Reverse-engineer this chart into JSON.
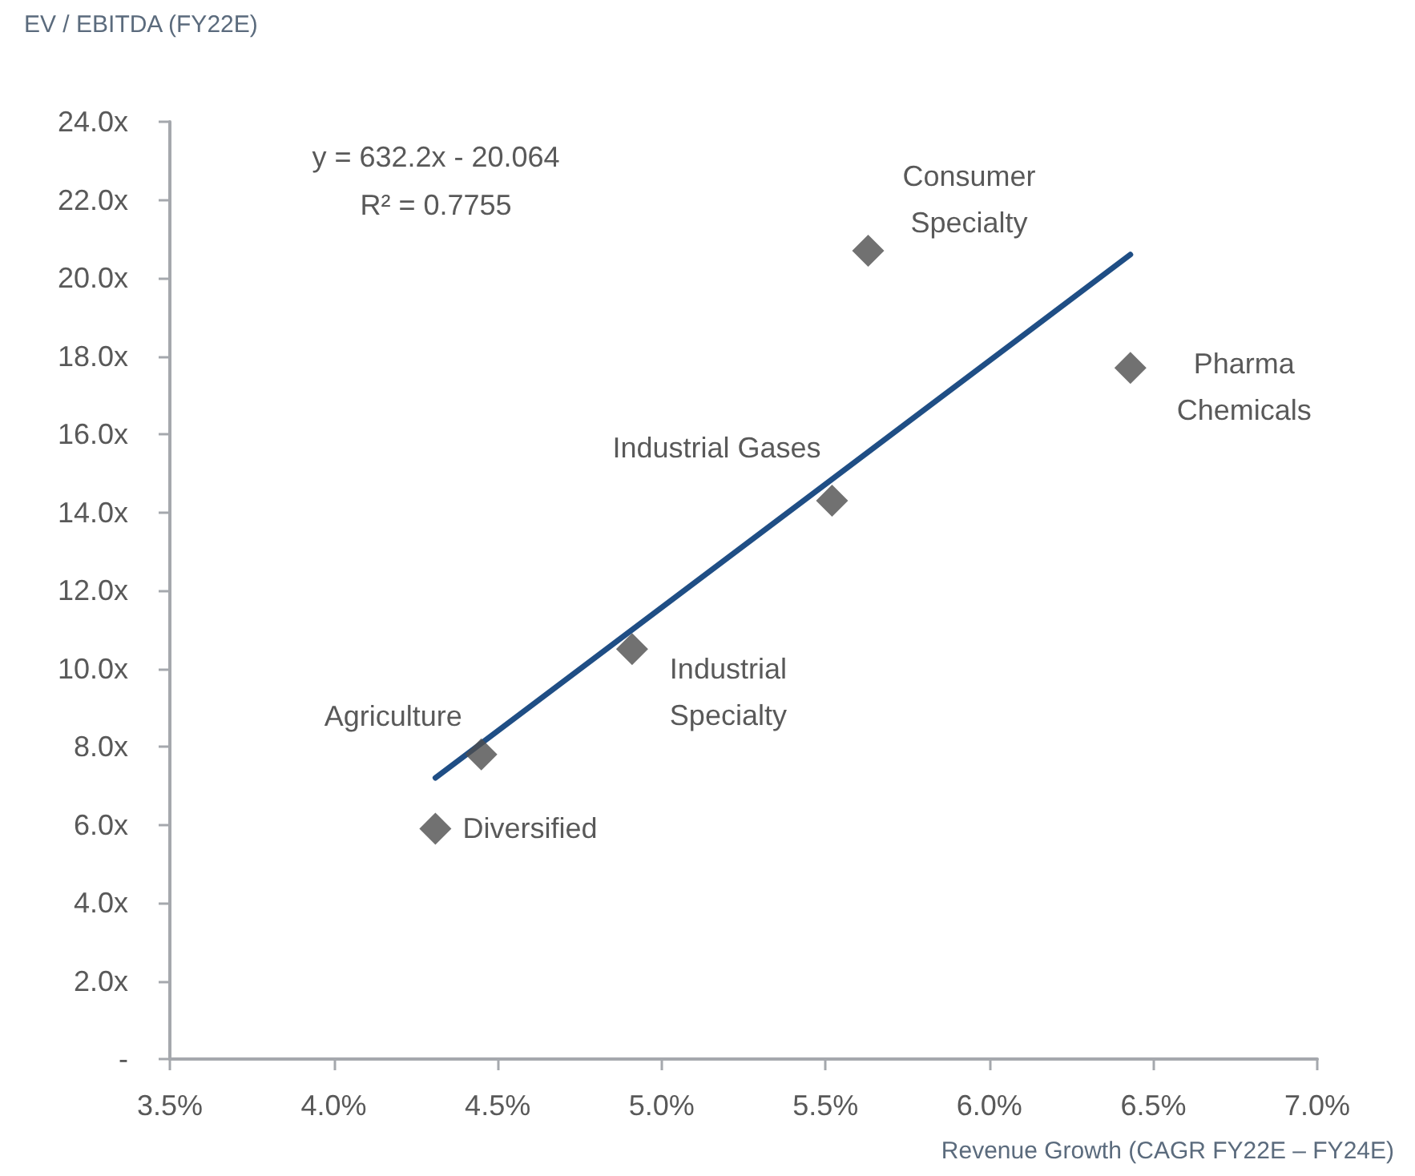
{
  "chart_data": {
    "type": "scatter",
    "ylabel": "EV / EBITDA (FY22E)",
    "xlabel": "Revenue Growth (CAGR FY22E – FY24E)",
    "series": [
      {
        "color": "#4d4d4d",
        "x": [
          5.63,
          6.43,
          5.52,
          4.91,
          4.45,
          4.31
        ],
        "values": [
          20.7,
          17.7,
          14.3,
          10.5,
          7.8,
          5.9
        ]
      },
      {
        "type": "line",
        "color": "#1f4e85",
        "marker": "none",
        "x": [
          4.31,
          6.43
        ],
        "values": [
          7.2,
          20.6
        ]
      }
    ],
    "xlim": [
      3.5,
      7.0
    ],
    "xticks": [
      {
        "value": 3.5,
        "label": "3.5%"
      },
      {
        "value": 4.0,
        "label": "4.0%"
      },
      {
        "value": 4.5,
        "label": "4.5%"
      },
      {
        "value": 5.0,
        "label": "5.0%"
      },
      {
        "value": 5.5,
        "label": "5.5%"
      },
      {
        "value": 6.0,
        "label": "6.0%"
      },
      {
        "value": 6.5,
        "label": "6.5%"
      },
      {
        "value": 7.0,
        "label": "7.0%"
      }
    ],
    "ylim": [
      0,
      24
    ],
    "yticks": [
      {
        "value": 0,
        "label": "-"
      },
      {
        "value": 2,
        "label": "2.0x"
      },
      {
        "value": 4,
        "label": "4.0x"
      },
      {
        "value": 6,
        "label": "6.0x"
      },
      {
        "value": 8,
        "label": "8.0x"
      },
      {
        "value": 10,
        "label": "10.0x"
      },
      {
        "value": 12,
        "label": "12.0x"
      },
      {
        "value": 14,
        "label": "14.0x"
      },
      {
        "value": 16,
        "label": "16.0x"
      },
      {
        "value": 18,
        "label": "18.0x"
      },
      {
        "value": 20,
        "label": "20.0x"
      },
      {
        "value": 22,
        "label": "22.0x"
      },
      {
        "value": 24,
        "label": "24.0x"
      }
    ],
    "annotations": [
      "y = 632.2x - 20.064",
      "R² = 0.7755",
      {
        "text": "Consumer Specialty",
        "x": 5.63,
        "y": 20.7
      },
      {
        "text": "Pharma Chemicals",
        "x": 6.43,
        "y": 17.7
      },
      {
        "text": "Industrial Gases",
        "x": 5.52,
        "y": 14.3
      },
      {
        "text": "Industrial Specialty",
        "x": 4.91,
        "y": 10.5
      },
      {
        "text": "Agriculture",
        "x": 4.45,
        "y": 7.8
      },
      {
        "text": "Diversified",
        "x": 4.31,
        "y": 5.9
      }
    ],
    "grid": false,
    "marker": "diamond",
    "line_style": "solid"
  }
}
